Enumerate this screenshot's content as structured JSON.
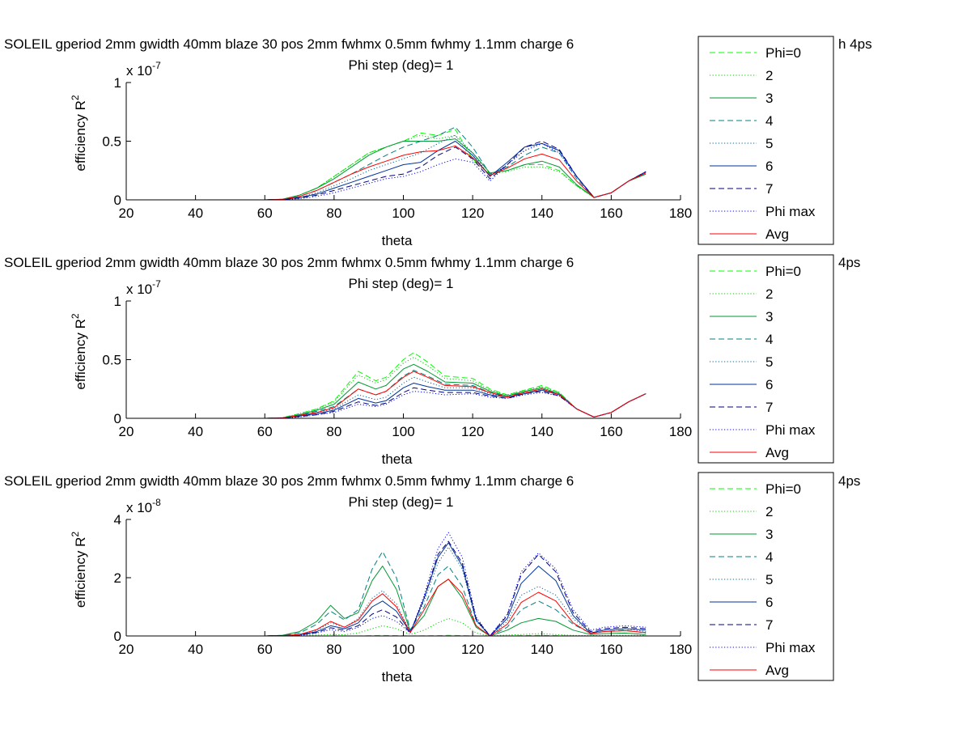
{
  "chart_data": [
    {
      "type": "line",
      "title": "SOLEIL gperiod 2mm gwidth 40mm blaze 30 pos 2mm fwhmx 0.5mm fwhmy 1.1mm charge 6",
      "title_tail": "h 4ps",
      "subtitle": "Phi step (deg)= 1",
      "xlabel": "theta",
      "ylabel": "efficiency R",
      "ylabel_sup": "2",
      "exponent": "x 10",
      "exponent_sup": "-7",
      "xlim": [
        20,
        180
      ],
      "ylim": [
        0,
        1
      ],
      "xticks": [
        "20",
        "40",
        "60",
        "80",
        "100",
        "120",
        "140",
        "160",
        "180"
      ],
      "yticks": [
        {
          "v": 0,
          "label": "0"
        },
        {
          "v": 0.5,
          "label": "0.5"
        },
        {
          "v": 1,
          "label": "1"
        }
      ],
      "grid": false,
      "legend_position": "right, clipped past axes",
      "x": [
        30,
        60,
        65,
        70,
        75,
        80,
        85,
        90,
        95,
        100,
        105,
        110,
        115,
        120,
        125,
        130,
        135,
        140,
        145,
        150,
        155,
        160,
        165,
        170
      ],
      "series": [
        {
          "name": "Phi=0",
          "color": "#00ff00",
          "dash": "dashed",
          "values": [
            0,
            0,
            0.005,
            0.04,
            0.1,
            0.2,
            0.3,
            0.4,
            0.45,
            0.5,
            0.57,
            0.55,
            0.6,
            0.35,
            0.22,
            0.25,
            0.3,
            0.3,
            0.25,
            0.12,
            0.02,
            0.06,
            0.16,
            0.22
          ]
        },
        {
          "name": "2",
          "color": "#00cc00",
          "dash": "dotted",
          "values": [
            0,
            0,
            0.005,
            0.04,
            0.1,
            0.2,
            0.3,
            0.4,
            0.45,
            0.5,
            0.55,
            0.52,
            0.55,
            0.33,
            0.22,
            0.24,
            0.28,
            0.28,
            0.24,
            0.12,
            0.02,
            0.06,
            0.16,
            0.22
          ]
        },
        {
          "name": "3",
          "color": "#009933",
          "dash": "solid",
          "values": [
            0,
            0,
            0.005,
            0.04,
            0.1,
            0.18,
            0.28,
            0.38,
            0.45,
            0.5,
            0.5,
            0.5,
            0.52,
            0.4,
            0.23,
            0.25,
            0.3,
            0.33,
            0.28,
            0.13,
            0.02,
            0.06,
            0.16,
            0.22
          ]
        },
        {
          "name": "4",
          "color": "#008080",
          "dash": "dashed",
          "values": [
            0,
            0,
            0.004,
            0.03,
            0.08,
            0.15,
            0.22,
            0.3,
            0.38,
            0.45,
            0.5,
            0.55,
            0.62,
            0.45,
            0.22,
            0.28,
            0.38,
            0.45,
            0.4,
            0.18,
            0.02,
            0.06,
            0.16,
            0.23
          ]
        },
        {
          "name": "5",
          "color": "#006699",
          "dash": "dotted",
          "values": [
            0,
            0,
            0.003,
            0.02,
            0.06,
            0.12,
            0.18,
            0.25,
            0.3,
            0.35,
            0.4,
            0.48,
            0.55,
            0.4,
            0.2,
            0.3,
            0.42,
            0.48,
            0.42,
            0.2,
            0.02,
            0.06,
            0.16,
            0.23
          ]
        },
        {
          "name": "6",
          "color": "#003399",
          "dash": "solid",
          "values": [
            0,
            0,
            0.003,
            0.02,
            0.05,
            0.1,
            0.15,
            0.2,
            0.25,
            0.3,
            0.32,
            0.42,
            0.5,
            0.38,
            0.2,
            0.32,
            0.45,
            0.48,
            0.42,
            0.2,
            0.02,
            0.06,
            0.16,
            0.24
          ]
        },
        {
          "name": "7",
          "color": "#000080",
          "dash": "dashed",
          "values": [
            0,
            0,
            0.003,
            0.015,
            0.04,
            0.08,
            0.12,
            0.16,
            0.2,
            0.22,
            0.28,
            0.38,
            0.45,
            0.35,
            0.18,
            0.3,
            0.45,
            0.5,
            0.43,
            0.2,
            0.02,
            0.06,
            0.16,
            0.24
          ]
        },
        {
          "name": "Phi max",
          "color": "#0000ff",
          "dash": "dotted",
          "values": [
            0,
            0,
            0.002,
            0.01,
            0.03,
            0.06,
            0.1,
            0.14,
            0.18,
            0.2,
            0.24,
            0.3,
            0.35,
            0.32,
            0.16,
            0.3,
            0.42,
            0.48,
            0.4,
            0.2,
            0.02,
            0.06,
            0.16,
            0.24
          ]
        },
        {
          "name": "Avg",
          "color": "#ff0000",
          "dash": "solid",
          "values": [
            0,
            0,
            0.004,
            0.03,
            0.08,
            0.15,
            0.22,
            0.28,
            0.33,
            0.38,
            0.41,
            0.42,
            0.46,
            0.36,
            0.21,
            0.27,
            0.35,
            0.39,
            0.34,
            0.16,
            0.02,
            0.06,
            0.16,
            0.23
          ]
        }
      ]
    },
    {
      "type": "line",
      "title": "SOLEIL gperiod 2mm gwidth 40mm blaze 30 pos 2mm fwhmx 0.5mm fwhmy 1.1mm charge 6",
      "title_tail": "4ps",
      "subtitle": "Phi step (deg)= 1",
      "xlabel": "theta",
      "ylabel": "efficiency R",
      "ylabel_sup": "2",
      "exponent": "x 10",
      "exponent_sup": "-7",
      "xlim": [
        20,
        180
      ],
      "ylim": [
        0,
        1
      ],
      "xticks": [
        "20",
        "40",
        "60",
        "80",
        "100",
        "120",
        "140",
        "160",
        "180"
      ],
      "yticks": [
        {
          "v": 0,
          "label": "0"
        },
        {
          "v": 0.5,
          "label": "0.5"
        },
        {
          "v": 1,
          "label": "1"
        }
      ],
      "grid": false,
      "legend_position": "right, clipped past axes",
      "x": [
        30,
        60,
        65,
        70,
        75,
        80,
        87,
        92,
        95,
        100,
        103,
        107,
        112,
        120,
        125,
        130,
        135,
        140,
        145,
        150,
        155,
        160,
        165,
        170
      ],
      "series": [
        {
          "name": "Phi=0",
          "color": "#00ff00",
          "dash": "dashed",
          "values": [
            0,
            0,
            0.005,
            0.04,
            0.08,
            0.15,
            0.4,
            0.32,
            0.35,
            0.5,
            0.56,
            0.48,
            0.36,
            0.34,
            0.25,
            0.2,
            0.24,
            0.28,
            0.22,
            0.08,
            0.01,
            0.05,
            0.14,
            0.21
          ]
        },
        {
          "name": "2",
          "color": "#00cc00",
          "dash": "dotted",
          "values": [
            0,
            0,
            0.005,
            0.04,
            0.08,
            0.14,
            0.37,
            0.3,
            0.33,
            0.47,
            0.52,
            0.45,
            0.34,
            0.32,
            0.24,
            0.2,
            0.24,
            0.27,
            0.22,
            0.08,
            0.01,
            0.05,
            0.14,
            0.21
          ]
        },
        {
          "name": "3",
          "color": "#009933",
          "dash": "solid",
          "values": [
            0,
            0,
            0.004,
            0.03,
            0.07,
            0.12,
            0.31,
            0.25,
            0.28,
            0.42,
            0.46,
            0.4,
            0.31,
            0.3,
            0.23,
            0.19,
            0.23,
            0.26,
            0.21,
            0.08,
            0.01,
            0.05,
            0.14,
            0.21
          ]
        },
        {
          "name": "4",
          "color": "#008080",
          "dash": "dashed",
          "values": [
            0,
            0,
            0.004,
            0.03,
            0.06,
            0.1,
            0.25,
            0.2,
            0.23,
            0.36,
            0.41,
            0.36,
            0.29,
            0.28,
            0.22,
            0.19,
            0.22,
            0.25,
            0.21,
            0.08,
            0.01,
            0.05,
            0.14,
            0.21
          ]
        },
        {
          "name": "5",
          "color": "#006699",
          "dash": "dotted",
          "values": [
            0,
            0,
            0.003,
            0.02,
            0.05,
            0.08,
            0.2,
            0.16,
            0.18,
            0.3,
            0.35,
            0.31,
            0.26,
            0.26,
            0.21,
            0.18,
            0.22,
            0.25,
            0.2,
            0.08,
            0.01,
            0.05,
            0.14,
            0.21
          ]
        },
        {
          "name": "6",
          "color": "#003399",
          "dash": "solid",
          "values": [
            0,
            0,
            0.003,
            0.02,
            0.04,
            0.07,
            0.17,
            0.13,
            0.15,
            0.26,
            0.3,
            0.27,
            0.24,
            0.24,
            0.2,
            0.18,
            0.21,
            0.24,
            0.2,
            0.08,
            0.01,
            0.05,
            0.14,
            0.21
          ]
        },
        {
          "name": "7",
          "color": "#000080",
          "dash": "dashed",
          "values": [
            0,
            0,
            0.002,
            0.015,
            0.03,
            0.06,
            0.14,
            0.11,
            0.13,
            0.22,
            0.26,
            0.24,
            0.22,
            0.22,
            0.19,
            0.17,
            0.21,
            0.23,
            0.19,
            0.08,
            0.01,
            0.05,
            0.14,
            0.21
          ]
        },
        {
          "name": "Phi max",
          "color": "#0000ff",
          "dash": "dotted",
          "values": [
            0,
            0,
            0.002,
            0.01,
            0.03,
            0.05,
            0.12,
            0.1,
            0.12,
            0.2,
            0.23,
            0.22,
            0.2,
            0.21,
            0.18,
            0.17,
            0.2,
            0.22,
            0.19,
            0.08,
            0.01,
            0.05,
            0.14,
            0.21
          ]
        },
        {
          "name": "Avg",
          "color": "#ff0000",
          "dash": "solid",
          "values": [
            0,
            0,
            0.003,
            0.025,
            0.05,
            0.09,
            0.25,
            0.2,
            0.23,
            0.35,
            0.4,
            0.35,
            0.28,
            0.27,
            0.22,
            0.18,
            0.22,
            0.25,
            0.2,
            0.08,
            0.01,
            0.05,
            0.14,
            0.21
          ]
        }
      ]
    },
    {
      "type": "line",
      "title": "SOLEIL gperiod 2mm gwidth 40mm blaze 30 pos 2mm fwhmx 0.5mm fwhmy 1.1mm charge 6",
      "title_tail": "4ps",
      "subtitle": "Phi step (deg)= 1",
      "xlabel": "theta",
      "ylabel": "efficiency R",
      "ylabel_sup": "2",
      "exponent": "x 10",
      "exponent_sup": "-8",
      "xlim": [
        20,
        180
      ],
      "ylim": [
        0,
        4
      ],
      "xticks": [
        "20",
        "40",
        "60",
        "80",
        "100",
        "120",
        "140",
        "160",
        "180"
      ],
      "yticks": [
        {
          "v": 0,
          "label": "0"
        },
        {
          "v": 2,
          "label": "2"
        },
        {
          "v": 4,
          "label": "4"
        }
      ],
      "grid": false,
      "legend_position": "right, clipped past axes",
      "x": [
        30,
        60,
        65,
        70,
        75,
        79,
        83,
        87,
        91,
        94,
        98,
        102,
        106,
        110,
        113,
        117,
        121,
        125,
        130,
        134,
        139,
        144,
        149,
        154,
        158,
        164,
        170
      ],
      "series": [
        {
          "name": "Phi=0",
          "color": "#00ff00",
          "dash": "dashed",
          "values": [
            0,
            0,
            0,
            0,
            0,
            0,
            0,
            0,
            0.01,
            0.02,
            0.01,
            0,
            0.005,
            0.01,
            0.02,
            0.01,
            0,
            0,
            0,
            0.01,
            0.02,
            0.01,
            0,
            0,
            0,
            0,
            0
          ]
        },
        {
          "name": "2",
          "color": "#00cc00",
          "dash": "dotted",
          "values": [
            0,
            0,
            0,
            0.02,
            0.03,
            0.05,
            0.04,
            0.1,
            0.25,
            0.35,
            0.25,
            0.05,
            0.2,
            0.45,
            0.6,
            0.45,
            0.1,
            0,
            0.03,
            0.05,
            0.08,
            0.05,
            0.02,
            0.01,
            0.02,
            0.02,
            0.02
          ]
        },
        {
          "name": "3",
          "color": "#009933",
          "dash": "solid",
          "values": [
            0,
            0,
            0.02,
            0.15,
            0.5,
            1.05,
            0.6,
            0.8,
            1.9,
            2.4,
            1.6,
            0.15,
            0.7,
            1.7,
            1.95,
            1.3,
            0.3,
            0,
            0.2,
            0.45,
            0.6,
            0.5,
            0.2,
            0.05,
            0.08,
            0.1,
            0.05
          ]
        },
        {
          "name": "4",
          "color": "#008080",
          "dash": "dashed",
          "values": [
            0,
            0,
            0.02,
            0.1,
            0.4,
            0.85,
            0.55,
            0.9,
            2.3,
            2.9,
            2.0,
            0.2,
            1.0,
            2.1,
            2.4,
            1.7,
            0.35,
            0,
            0.3,
            0.9,
            1.2,
            0.9,
            0.4,
            0.1,
            0.15,
            0.2,
            0.1
          ]
        },
        {
          "name": "5",
          "color": "#006699",
          "dash": "dotted",
          "values": [
            0,
            0,
            0.01,
            0.05,
            0.2,
            0.45,
            0.3,
            0.6,
            1.3,
            1.55,
            1.1,
            0.15,
            1.2,
            2.5,
            3.05,
            2.3,
            0.5,
            0,
            0.5,
            1.4,
            1.7,
            1.4,
            0.6,
            0.1,
            0.2,
            0.25,
            0.15
          ]
        },
        {
          "name": "6",
          "color": "#003399",
          "dash": "solid",
          "values": [
            0,
            0,
            0.01,
            0.04,
            0.15,
            0.35,
            0.25,
            0.45,
            1.0,
            1.2,
            0.85,
            0.12,
            1.3,
            2.7,
            3.2,
            2.4,
            0.55,
            0,
            0.6,
            1.8,
            2.4,
            1.9,
            0.7,
            0.1,
            0.2,
            0.25,
            0.2
          ]
        },
        {
          "name": "7",
          "color": "#000080",
          "dash": "dashed",
          "values": [
            0,
            0,
            0.01,
            0.03,
            0.12,
            0.28,
            0.2,
            0.35,
            0.75,
            0.9,
            0.65,
            0.1,
            1.3,
            2.8,
            3.25,
            2.5,
            0.6,
            0,
            0.7,
            2.1,
            2.8,
            2.2,
            0.8,
            0.15,
            0.25,
            0.3,
            0.25
          ]
        },
        {
          "name": "Phi max",
          "color": "#0000ff",
          "dash": "dotted",
          "values": [
            0,
            0,
            0.01,
            0.02,
            0.1,
            0.22,
            0.15,
            0.3,
            0.6,
            0.7,
            0.5,
            0.1,
            1.4,
            3.0,
            3.55,
            2.7,
            0.65,
            0,
            0.75,
            2.2,
            2.85,
            2.3,
            0.9,
            0.2,
            0.3,
            0.35,
            0.3
          ]
        },
        {
          "name": "Avg",
          "color": "#ff0000",
          "dash": "solid",
          "values": [
            0,
            0,
            0.01,
            0.05,
            0.22,
            0.5,
            0.3,
            0.55,
            1.2,
            1.45,
            1.0,
            0.12,
            0.9,
            1.7,
            1.95,
            1.45,
            0.35,
            0,
            0.4,
            1.15,
            1.5,
            1.2,
            0.45,
            0.08,
            0.15,
            0.18,
            0.12
          ]
        }
      ]
    }
  ]
}
